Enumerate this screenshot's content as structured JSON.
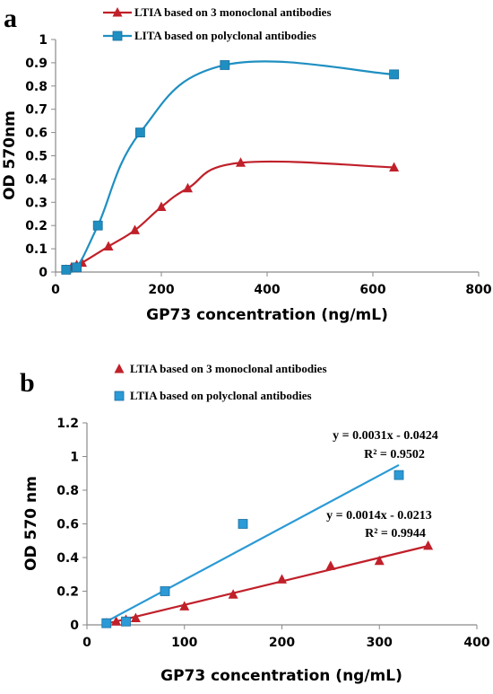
{
  "chart_data": [
    {
      "panel_label": "a",
      "type": "line",
      "xlabel": "GP73 concentration (ng/mL)",
      "ylabel": "OD 570nm",
      "xlim": [
        0,
        800
      ],
      "ylim": [
        0,
        1
      ],
      "xticks": [
        0,
        200,
        400,
        600,
        800
      ],
      "yticks": [
        0,
        0.1,
        0.2,
        0.3,
        0.4,
        0.5,
        0.6,
        0.7,
        0.8,
        0.9,
        1
      ],
      "legend_position": "top",
      "smooth": true,
      "series": [
        {
          "name": "LTIA based on 3 monoclonal antibodies",
          "color": "#c0202a",
          "marker": "triangle",
          "points": [
            [
              20,
              0.01
            ],
            [
              30,
              0.02
            ],
            [
              40,
              0.03
            ],
            [
              50,
              0.04
            ],
            [
              100,
              0.11
            ],
            [
              150,
              0.18
            ],
            [
              200,
              0.28
            ],
            [
              250,
              0.36
            ],
            [
              350,
              0.47
            ],
            [
              640,
              0.45
            ]
          ]
        },
        {
          "name": "LITA based on polyclonal antibodies",
          "color": "#1f8fc1",
          "marker": "square",
          "points": [
            [
              20,
              0.01
            ],
            [
              40,
              0.02
            ],
            [
              80,
              0.2
            ],
            [
              160,
              0.6
            ],
            [
              320,
              0.89
            ],
            [
              640,
              0.85
            ]
          ]
        }
      ]
    },
    {
      "panel_label": "b",
      "type": "scatter",
      "xlabel": "GP73 concentration (ng/mL)",
      "ylabel": "OD 570 nm",
      "xlim": [
        0,
        400
      ],
      "ylim": [
        0,
        1.2
      ],
      "xticks": [
        0,
        100,
        200,
        300,
        400
      ],
      "yticks": [
        0,
        0.2,
        0.4,
        0.6,
        0.8,
        1,
        1.2
      ],
      "legend_position": "top",
      "series": [
        {
          "name": "LTIA based on 3 monoclonal antibodies",
          "color": "#c0202a",
          "marker": "triangle",
          "points": [
            [
              20,
              0.01
            ],
            [
              30,
              0.02
            ],
            [
              40,
              0.03
            ],
            [
              50,
              0.04
            ],
            [
              100,
              0.11
            ],
            [
              150,
              0.18
            ],
            [
              200,
              0.27
            ],
            [
              250,
              0.35
            ],
            [
              300,
              0.38
            ],
            [
              350,
              0.47
            ]
          ],
          "trendline": {
            "slope": 0.0014,
            "intercept": -0.0213,
            "x_range": [
              20,
              350
            ],
            "equation": "y = 0.0014x - 0.0213",
            "r2": "R² = 0.9944"
          }
        },
        {
          "name": "LTIA based on polyclonal antibodies",
          "color": "#2b9ad6",
          "marker": "square",
          "points": [
            [
              20,
              0.01
            ],
            [
              40,
              0.02
            ],
            [
              80,
              0.2
            ],
            [
              160,
              0.6
            ],
            [
              320,
              0.89
            ]
          ],
          "trendline": {
            "slope": 0.0031,
            "intercept": -0.0424,
            "x_range": [
              20,
              320
            ],
            "equation": "y = 0.0031x - 0.0424",
            "r2": "R² = 0.9502"
          }
        }
      ]
    }
  ]
}
